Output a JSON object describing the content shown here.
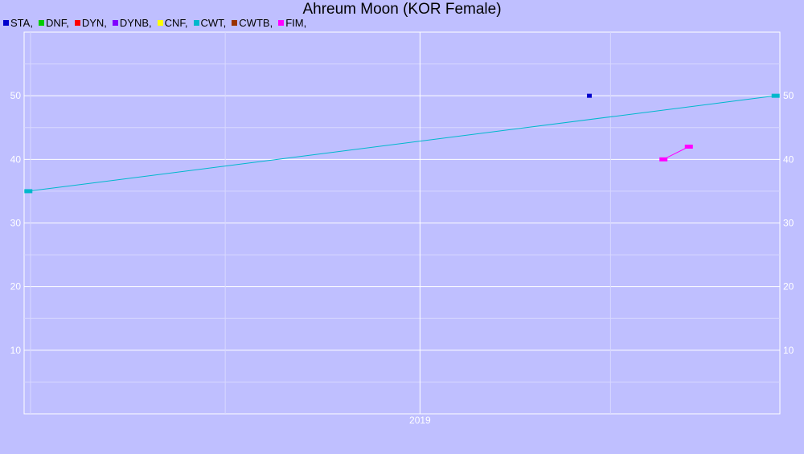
{
  "chart_data": {
    "type": "line",
    "title": "Ahreum Moon (KOR Female)",
    "xlabel": "",
    "ylabel": "",
    "x_tick_labels": [
      "2019"
    ],
    "x_range": [
      "2018-06-28",
      "2019-06-20"
    ],
    "ylim": [
      0,
      60
    ],
    "y_ticks": [
      10,
      20,
      30,
      40,
      50
    ],
    "grid": true,
    "legend_position": "top-left",
    "series": [
      {
        "name": "STA",
        "color": "#0000cc",
        "points": [
          {
            "x": "2019-03-22",
            "y": 50
          }
        ]
      },
      {
        "name": "DNF",
        "color": "#00cc00",
        "points": []
      },
      {
        "name": "DYN",
        "color": "#ff0000",
        "points": []
      },
      {
        "name": "DYNB",
        "color": "#7f00ff",
        "points": []
      },
      {
        "name": "CNF",
        "color": "#ffff00",
        "points": []
      },
      {
        "name": "CWT",
        "color": "#00b8cc",
        "points": [
          {
            "x": "2018-06-30",
            "y": 35
          },
          {
            "x": "2019-06-18",
            "y": 50
          }
        ]
      },
      {
        "name": "CWTB",
        "color": "#993300",
        "points": []
      },
      {
        "name": "FIM",
        "color": "#ff00ff",
        "points": [
          {
            "x": "2019-04-26",
            "y": 40
          },
          {
            "x": "2019-05-08",
            "y": 42
          }
        ]
      }
    ]
  }
}
